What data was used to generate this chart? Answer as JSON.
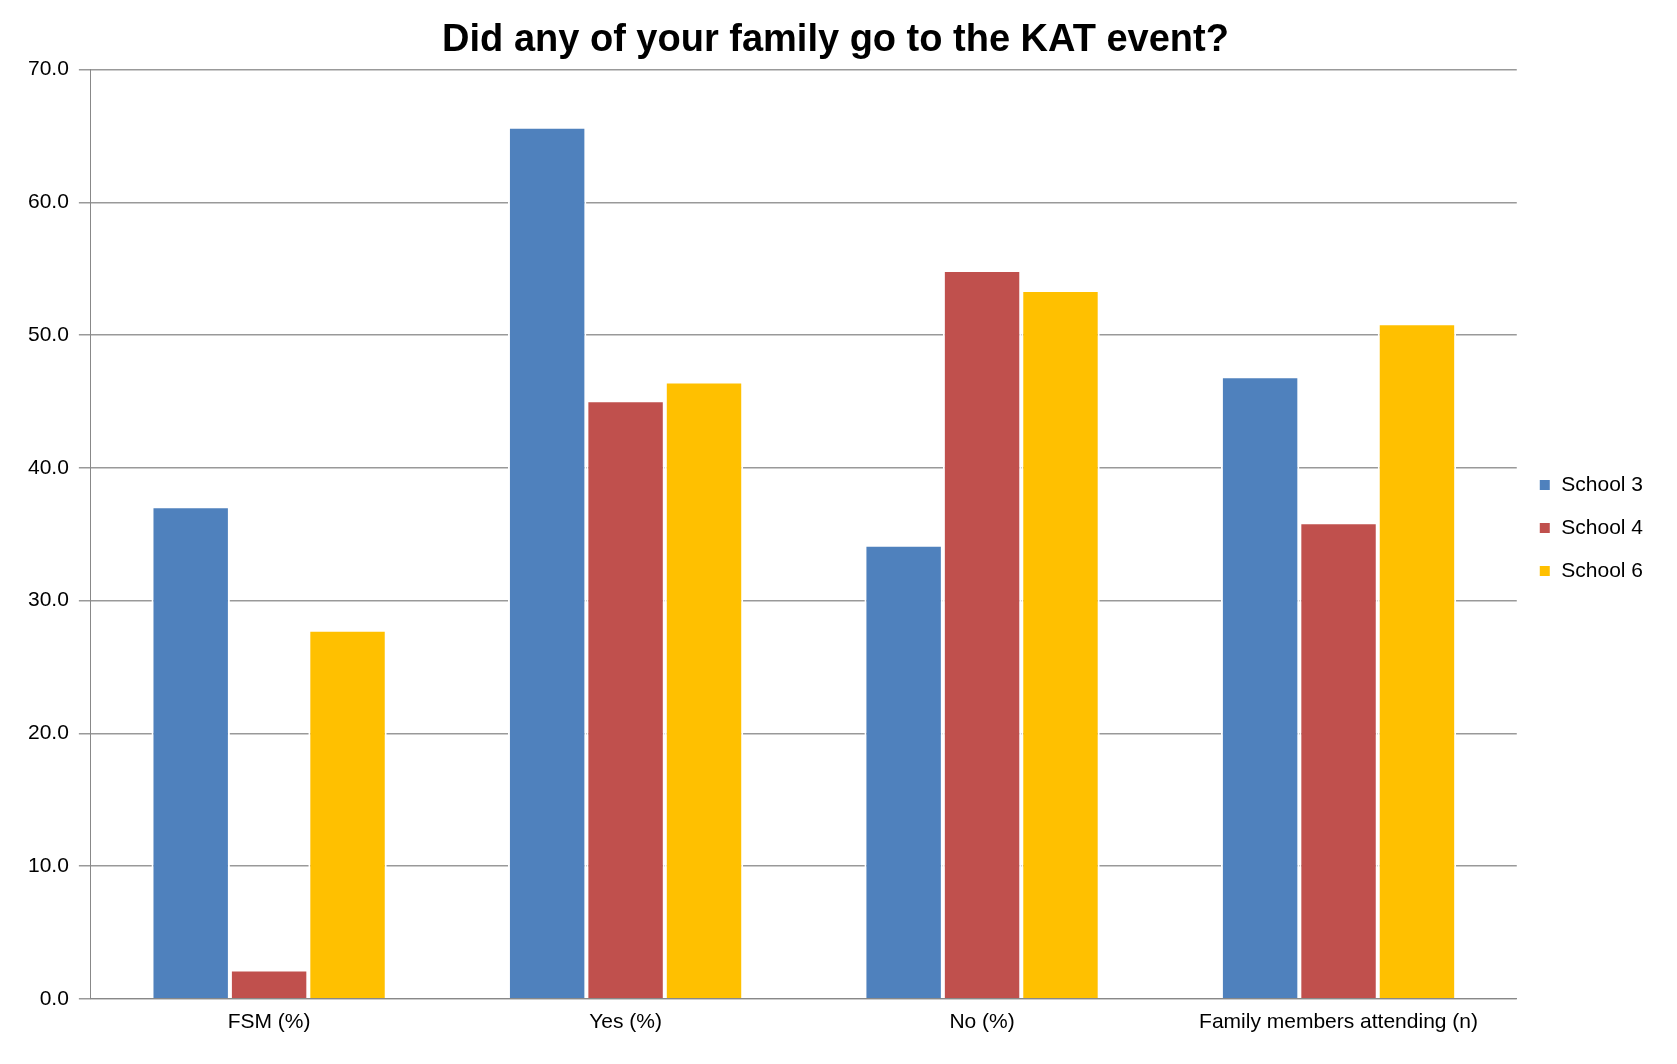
{
  "chart_data": {
    "type": "bar",
    "title": "Did any of your family go to the KAT event?",
    "categories": [
      "FSM (%)",
      "Yes (%)",
      "No (%)",
      "Family members attending (n)"
    ],
    "series": [
      {
        "name": "School 3",
        "color": "#4f81bd",
        "values": [
          37.1,
          65.7,
          34.2,
          46.9
        ]
      },
      {
        "name": "School 4",
        "color": "#c0504d",
        "values": [
          2.2,
          45.1,
          54.9,
          35.9
        ]
      },
      {
        "name": "School 6",
        "color": "#ffc000",
        "values": [
          27.8,
          46.5,
          53.4,
          50.9
        ]
      }
    ],
    "ylim": [
      0,
      70
    ],
    "yticks": [
      {
        "value": 0,
        "label": "0.0"
      },
      {
        "value": 10,
        "label": "10.0"
      },
      {
        "value": 20,
        "label": "20.0"
      },
      {
        "value": 30,
        "label": "30.0"
      },
      {
        "value": 40,
        "label": "40.0"
      },
      {
        "value": 50,
        "label": "50.0"
      },
      {
        "value": 60,
        "label": "60.0"
      },
      {
        "value": 70,
        "label": "70.0"
      }
    ],
    "grid": "y",
    "legend": "right"
  }
}
